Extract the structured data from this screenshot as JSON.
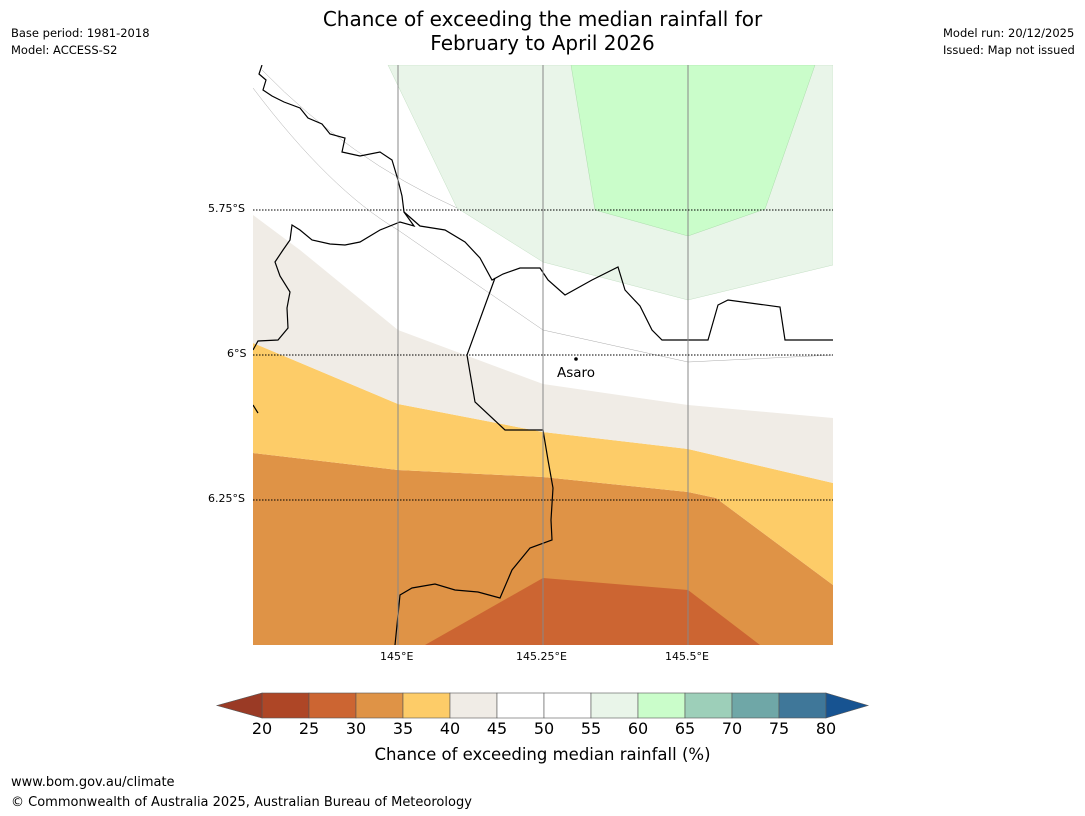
{
  "header": {
    "title_line1": "Chance of exceeding the median rainfall for",
    "title_line2": "February to April 2026",
    "base_period": "Base period: 1981-2018",
    "model": "Model: ACCESS-S2",
    "model_run": "Model run: 20/12/2025",
    "issued": "Issued: Map not issued"
  },
  "map": {
    "lat_labels": [
      "5.75°S",
      "6°S",
      "6.25°S"
    ],
    "lon_labels": [
      "145°E",
      "145.25°E",
      "145.5°E"
    ],
    "place_name": "Asaro",
    "category_colors": {
      "30-35": "#df9346",
      "25-30": "#cc6532",
      "35-40": "#fdcc68",
      "40-45": "#f0ece6",
      "45-55": "#ffffff",
      "55-60": "#e9f5e9",
      "60-65": "#cafdca"
    }
  },
  "colorbar": {
    "ticks": [
      "20",
      "25",
      "30",
      "35",
      "40",
      "45",
      "50",
      "55",
      "60",
      "65",
      "70",
      "75",
      "80"
    ],
    "colors": [
      "#ae4626",
      "#cc6532",
      "#df9346",
      "#fdcc68",
      "#f0ece6",
      "#ffffff",
      "#ffffff",
      "#e9f5e9",
      "#cafdca",
      "#9dcfb9",
      "#6fa7a7",
      "#3f7799"
    ],
    "under_color": "#9a3a25",
    "over_color": "#175391",
    "label": "Chance of exceeding median rainfall (%)"
  },
  "footer": {
    "url": "www.bom.gov.au/climate",
    "copyright": "© Commonwealth of Australia 2025, Australian Bureau of Meteorology"
  }
}
